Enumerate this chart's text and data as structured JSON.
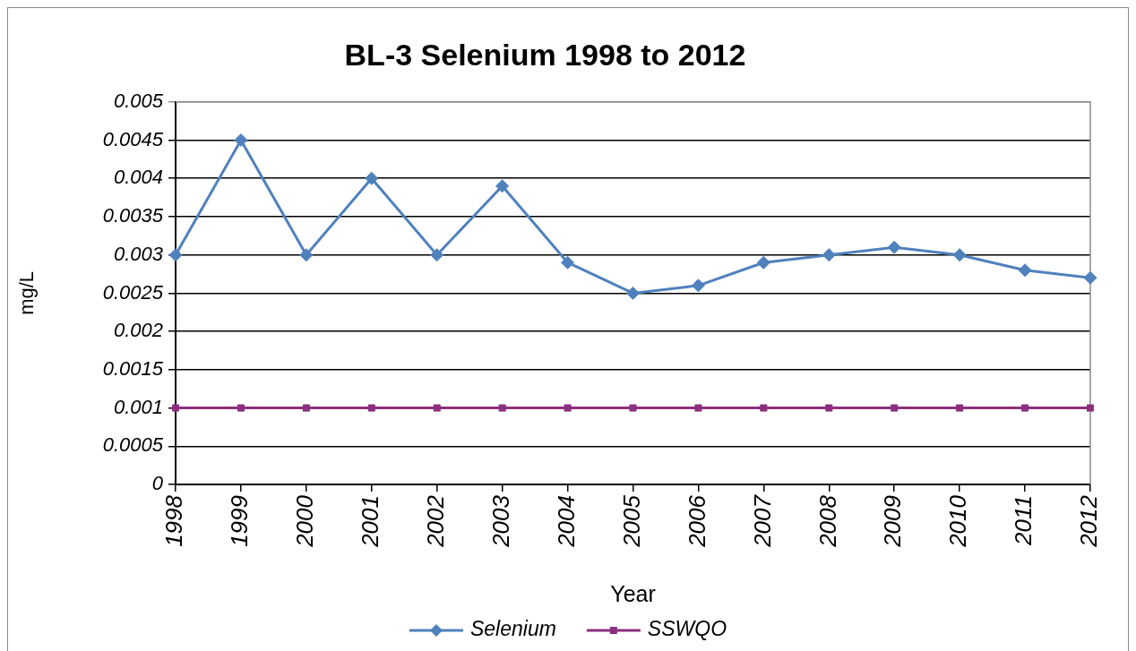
{
  "chart_data": {
    "type": "line",
    "title": "BL-3 Selenium 1998 to 2012",
    "xlabel": "Year",
    "ylabel": "mg/L",
    "categories": [
      "1998",
      "1999",
      "2000",
      "2001",
      "2002",
      "2003",
      "2004",
      "2005",
      "2006",
      "2007",
      "2008",
      "2009",
      "2010",
      "2011",
      "2012"
    ],
    "series": [
      {
        "name": "Selenium",
        "color": "#4f81bd",
        "marker": "diamond",
        "values": [
          0.003,
          0.0045,
          0.003,
          0.004,
          0.003,
          0.0039,
          0.0029,
          0.0025,
          0.0026,
          0.0029,
          0.003,
          0.0031,
          0.003,
          0.0028,
          0.0027
        ]
      },
      {
        "name": "SSWQO",
        "color": "#8c2f7e",
        "marker": "square",
        "values": [
          0.001,
          0.001,
          0.001,
          0.001,
          0.001,
          0.001,
          0.001,
          0.001,
          0.001,
          0.001,
          0.001,
          0.001,
          0.001,
          0.001,
          0.001
        ]
      }
    ],
    "ylim": [
      0,
      0.005
    ],
    "yticks": [
      0,
      0.0005,
      0.001,
      0.0015,
      0.002,
      0.0025,
      0.003,
      0.0035,
      0.004,
      0.0045,
      0.005
    ],
    "grid": "y",
    "legend": "bottom",
    "line_style": "solid"
  }
}
